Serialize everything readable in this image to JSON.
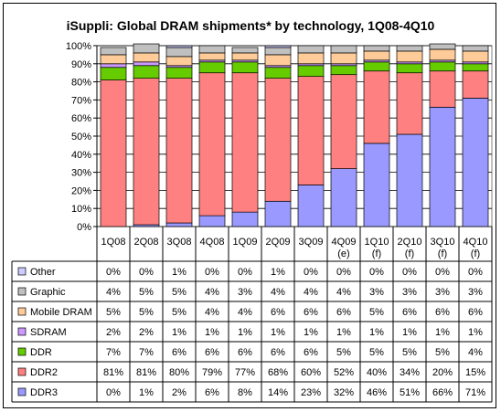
{
  "chart_data": {
    "type": "bar",
    "stacked": true,
    "title": "iSuppli: Global DRAM shipments* by technology, 1Q08-4Q10",
    "categories": [
      [
        "1Q08"
      ],
      [
        "2Q08"
      ],
      [
        "3Q08"
      ],
      [
        "4Q08"
      ],
      [
        "1Q09"
      ],
      [
        "2Q09"
      ],
      [
        "3Q09"
      ],
      [
        "4Q09",
        "(e)"
      ],
      [
        "1Q10",
        "(f)"
      ],
      [
        "2Q10",
        "(f)"
      ],
      [
        "3Q10",
        "(f)"
      ],
      [
        "4Q10",
        "(f)"
      ]
    ],
    "yticks": [
      "0%",
      "10%",
      "20%",
      "30%",
      "40%",
      "50%",
      "60%",
      "70%",
      "80%",
      "90%",
      "100%"
    ],
    "ylim": [
      0,
      100
    ],
    "grid": true,
    "legend": "table-below",
    "series": [
      {
        "name": "DDR3",
        "color": "#9999ff",
        "values": [
          0,
          1,
          2,
          6,
          8,
          14,
          23,
          32,
          46,
          51,
          66,
          71
        ],
        "labels": [
          "0%",
          "1%",
          "2%",
          "6%",
          "8%",
          "14%",
          "23%",
          "32%",
          "46%",
          "51%",
          "66%",
          "71%"
        ]
      },
      {
        "name": "DDR2",
        "color": "#ff8080",
        "values": [
          81,
          81,
          80,
          79,
          77,
          68,
          60,
          52,
          40,
          34,
          20,
          15
        ],
        "labels": [
          "81%",
          "81%",
          "80%",
          "79%",
          "77%",
          "68%",
          "60%",
          "52%",
          "40%",
          "34%",
          "20%",
          "15%"
        ]
      },
      {
        "name": "DDR",
        "color": "#66cc00",
        "values": [
          7,
          7,
          6,
          6,
          6,
          6,
          6,
          5,
          5,
          5,
          5,
          4
        ],
        "labels": [
          "7%",
          "7%",
          "6%",
          "6%",
          "6%",
          "6%",
          "6%",
          "5%",
          "5%",
          "5%",
          "5%",
          "4%"
        ]
      },
      {
        "name": "SDRAM",
        "color": "#cc99ff",
        "values": [
          2,
          2,
          1,
          1,
          1,
          1,
          1,
          1,
          1,
          1,
          1,
          1
        ],
        "labels": [
          "2%",
          "2%",
          "1%",
          "1%",
          "1%",
          "1%",
          "1%",
          "1%",
          "1%",
          "1%",
          "1%",
          "1%"
        ]
      },
      {
        "name": "Mobile DRAM",
        "color": "#ffcc99",
        "values": [
          5,
          5,
          5,
          4,
          4,
          6,
          6,
          6,
          5,
          6,
          6,
          6
        ],
        "labels": [
          "5%",
          "5%",
          "5%",
          "4%",
          "4%",
          "6%",
          "6%",
          "6%",
          "5%",
          "6%",
          "6%",
          "6%"
        ]
      },
      {
        "name": "Graphic",
        "color": "#c0c0c0",
        "values": [
          4,
          5,
          5,
          4,
          3,
          4,
          4,
          4,
          3,
          3,
          3,
          3
        ],
        "labels": [
          "4%",
          "5%",
          "5%",
          "4%",
          "3%",
          "4%",
          "4%",
          "4%",
          "3%",
          "3%",
          "3%",
          "3%"
        ]
      },
      {
        "name": "Other",
        "color": "#ccccff",
        "values": [
          0,
          0,
          1,
          0,
          0,
          1,
          0,
          0,
          0,
          0,
          0,
          0
        ],
        "labels": [
          "0%",
          "0%",
          "1%",
          "0%",
          "0%",
          "1%",
          "0%",
          "0%",
          "0%",
          "0%",
          "0%",
          "0%"
        ]
      }
    ],
    "table_row_order": [
      "Other",
      "Graphic",
      "Mobile DRAM",
      "SDRAM",
      "DDR",
      "DDR2",
      "DDR3"
    ]
  }
}
